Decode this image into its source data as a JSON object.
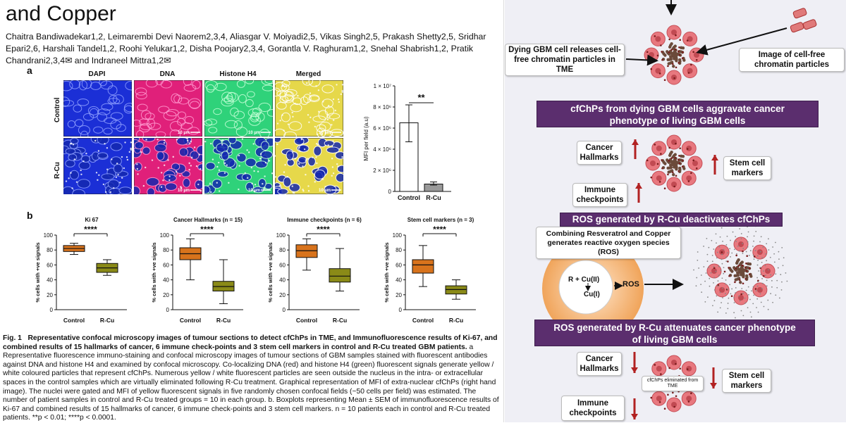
{
  "paper": {
    "title": "and Copper",
    "authors": "Chaitra Bandiwadekar1,2, Leimarembi Devi Naorem2,3,4, Aliasgar V. Moiyadi2,5, Vikas Singh2,5, Prakash Shetty2,5, Sridhar Epari2,6, Harshali Tandel1,2, Roohi Yelukar1,2, Disha Poojary2,3,4, Gorantla V. Raghuram1,2, Snehal Shabrish1,2, Pratik Chandrani2,3,4✉ and Indraneel Mittra1,2✉"
  },
  "panel_a": {
    "letter": "a",
    "columns": [
      "DAPI",
      "DNA",
      "Histone H4",
      "Merged"
    ],
    "rows": [
      "Control",
      "R-Cu"
    ],
    "scale_label": "10 µm",
    "colors": {
      "dapi": "#1b2fd6",
      "dna": "#e0207a",
      "h4": "#2fd27a",
      "merged": "#e6d84a"
    }
  },
  "panel_b": {
    "letter": "b"
  },
  "chart_data": [
    {
      "type": "bar",
      "title": "",
      "ylabel": "MFI per field (a.u)",
      "categories": [
        "Control",
        "R-Cu"
      ],
      "values": [
        6500000,
        700000
      ],
      "errors": [
        [
          4700000,
          8200000
        ],
        [
          600000,
          900000
        ]
      ],
      "ylim": [
        0,
        10000000
      ],
      "yticks": [
        "0",
        "2 × 10⁶",
        "4 × 10⁶",
        "6 × 10⁶",
        "8 × 10⁶",
        "1 × 10⁷"
      ],
      "significance": "**",
      "bar_colors": [
        "#ffffff",
        "#9a9a9a"
      ]
    },
    {
      "type": "box",
      "title": "Ki 67",
      "ylabel": "% cells with +ve signals",
      "categories": [
        "Control",
        "R-Cu"
      ],
      "boxes": [
        {
          "min": 74,
          "q1": 78,
          "median": 82,
          "q3": 86,
          "max": 89
        },
        {
          "min": 46,
          "q1": 50,
          "median": 56,
          "q3": 62,
          "max": 67
        }
      ],
      "ylim": [
        0,
        100
      ],
      "yticks": [
        "0",
        "20",
        "40",
        "60",
        "80",
        "100"
      ],
      "significance": "****",
      "colors": [
        "#d8731c",
        "#8a8a17"
      ]
    },
    {
      "type": "box",
      "title": "Cancer Hallmarks (n = 15)",
      "ylabel": "% cells with +ve signals",
      "categories": [
        "Control",
        "R-Cu"
      ],
      "boxes": [
        {
          "min": 40,
          "q1": 67,
          "median": 75,
          "q3": 83,
          "max": 95
        },
        {
          "min": 8,
          "q1": 25,
          "median": 31,
          "q3": 38,
          "max": 67
        }
      ],
      "ylim": [
        0,
        100
      ],
      "yticks": [
        "0",
        "20",
        "40",
        "60",
        "80",
        "100"
      ],
      "significance": "****",
      "colors": [
        "#d8731c",
        "#8a8a17"
      ]
    },
    {
      "type": "box",
      "title": "Immune checkpoints (n = 6)",
      "ylabel": "% cells with +ve signals",
      "categories": [
        "Control",
        "R-Cu"
      ],
      "boxes": [
        {
          "min": 53,
          "q1": 70,
          "median": 79,
          "q3": 87,
          "max": 95
        },
        {
          "min": 25,
          "q1": 37,
          "median": 45,
          "q3": 55,
          "max": 82
        }
      ],
      "ylim": [
        0,
        100
      ],
      "yticks": [
        "0",
        "20",
        "40",
        "60",
        "80",
        "100"
      ],
      "significance": "****",
      "colors": [
        "#d8731c",
        "#8a8a17"
      ]
    },
    {
      "type": "box",
      "title": "Stem cell markers (n = 3)",
      "ylabel": "% cells with +ve signals",
      "categories": [
        "Control",
        "R-Cu"
      ],
      "boxes": [
        {
          "min": 31,
          "q1": 49,
          "median": 60,
          "q3": 67,
          "max": 86
        },
        {
          "min": 14,
          "q1": 21,
          "median": 27,
          "q3": 32,
          "max": 40
        }
      ],
      "ylim": [
        0,
        100
      ],
      "yticks": [
        "0",
        "20",
        "40",
        "60",
        "80",
        "100"
      ],
      "significance": "****",
      "colors": [
        "#d8731c",
        "#8a8a17"
      ]
    }
  ],
  "caption": {
    "label": "Fig. 1",
    "bold": "Representative confocal microscopy images of tumour sections to detect cfChPs in TME, and Immunofluorescence results of Ki-67, and combined results of 15 hallmarks of cancer, 6 immune check-points and 3 stem cell markers in control and R-Cu treated GBM patients.",
    "body": "a Representative fluorescence immuno-staining and confocal microscopy images of tumour sections of GBM samples stained with fluorescent antibodies against DNA and histone H4 and examined by confocal microscopy. Co-localizing DNA (red) and histone H4 (green) fluorescent signals generate yellow / white coloured particles that represent cfChPs. Numerous yellow / white fluorescent particles are seen outside the nucleus in the intra- or extracellular spaces in the control samples which are virtually eliminated following R-Cu treatment. Graphical representation of MFI of extra-nuclear cfChPs (right hand image). The nuclei were gated and MFI of yellow fluorescent signals in five randomly chosen confocal fields (~50 cells per field) was estimated. The number of patient samples in control and R-Cu treated groups = 10 in each group. b. Boxplots representing Mean ± SEM of immunofluorescence results of Ki-67 and combined results of 15 hallmarks of cancer, 6 immune check-points and 3 stem cell markers. n = 10 patients each in control and R-Cu treated patients. **p < 0.01; ****p < 0.0001."
  },
  "diagram": {
    "box_dying": "Dying GBM cell releases cell-free chromatin particles in TME",
    "box_image": "Image of cell-free chromatin particles",
    "banner1": "cfChPs from dying GBM cells aggravate cancer phenotype of  living GBM cells",
    "cancer_hallmarks": "Cancer Hallmarks",
    "stem_cell_markers": "Stem cell markers",
    "immune_checkpoints": "Immune checkpoints",
    "banner2": "ROS generated by R-Cu deactivates cfChPs",
    "box_combining": "Combining Resveratrol and Copper generates  reactive oxygen species (ROS)",
    "reaction_top": "R + Cu(II)",
    "reaction_bottom": "Cu(I)",
    "ros_label": "ROS",
    "banner3": "ROS generated by R-Cu attenuates cancer phenotype of  living GBM cells",
    "cfchps_eliminated": "cfChPs eliminated from TME",
    "colors": {
      "banner": "#5b2e6e",
      "arrow_up_down": "#b22222",
      "cell": "#e8787f",
      "chromatin": "#6b4a3a"
    }
  }
}
